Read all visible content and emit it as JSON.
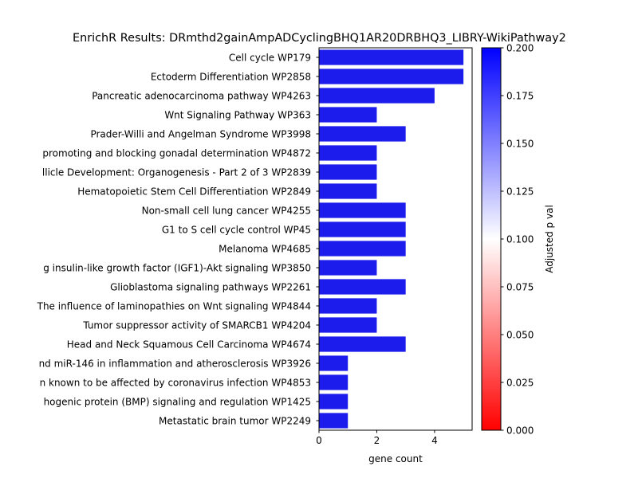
{
  "chart_data": {
    "type": "bar",
    "orientation": "horizontal",
    "title": "EnrichR Results: DRmthd2gainAmpADCyclingBHQ1AR20DRBHQ3_LIBRY-WikiPathway2",
    "xlabel": "gene count",
    "ylabel": "",
    "xlim": [
      0,
      5.3
    ],
    "xticks": [
      0,
      2,
      4
    ],
    "grid": false,
    "bar_color": "#1c1cec",
    "categories": [
      "Cell cycle WP179",
      "Ectoderm Differentiation WP2858",
      "Pancreatic adenocarcinoma pathway WP4263",
      "Wnt Signaling Pathway WP363",
      "Prader-Willi and Angelman Syndrome WP3998",
      "promoting and blocking gonadal determination WP4872",
      "llicle Development: Organogenesis - Part 2 of 3 WP2839",
      "Hematopoietic Stem Cell Differentiation WP2849",
      "Non-small cell lung cancer WP4255",
      "G1 to S cell cycle control WP45",
      "Melanoma WP4685",
      "g insulin-like growth factor (IGF1)-Akt signaling WP3850",
      "Glioblastoma signaling pathways WP2261",
      "The influence of laminopathies on Wnt signaling WP4844",
      "Tumor suppressor activity of SMARCB1 WP4204",
      "Head and Neck Squamous Cell Carcinoma WP4674",
      "nd miR-146 in inflammation and atherosclerosis WP3926",
      "n known to be affected by coronavirus infection WP4853",
      "hogenic protein (BMP) signaling and regulation WP1425",
      "Metastatic brain tumor WP2249"
    ],
    "values": [
      5,
      5,
      4,
      2,
      3,
      2,
      2,
      2,
      3,
      3,
      3,
      2,
      3,
      2,
      2,
      3,
      1,
      1,
      1,
      1
    ],
    "colorbar": {
      "label": "Adjusted p val",
      "range": [
        0.0,
        0.2
      ],
      "ticks": [
        "0.000",
        "0.025",
        "0.050",
        "0.075",
        "0.100",
        "0.125",
        "0.150",
        "0.175",
        "0.200"
      ],
      "colormap": [
        "#ff0000",
        "#ffffff",
        "#0000ff"
      ]
    }
  }
}
